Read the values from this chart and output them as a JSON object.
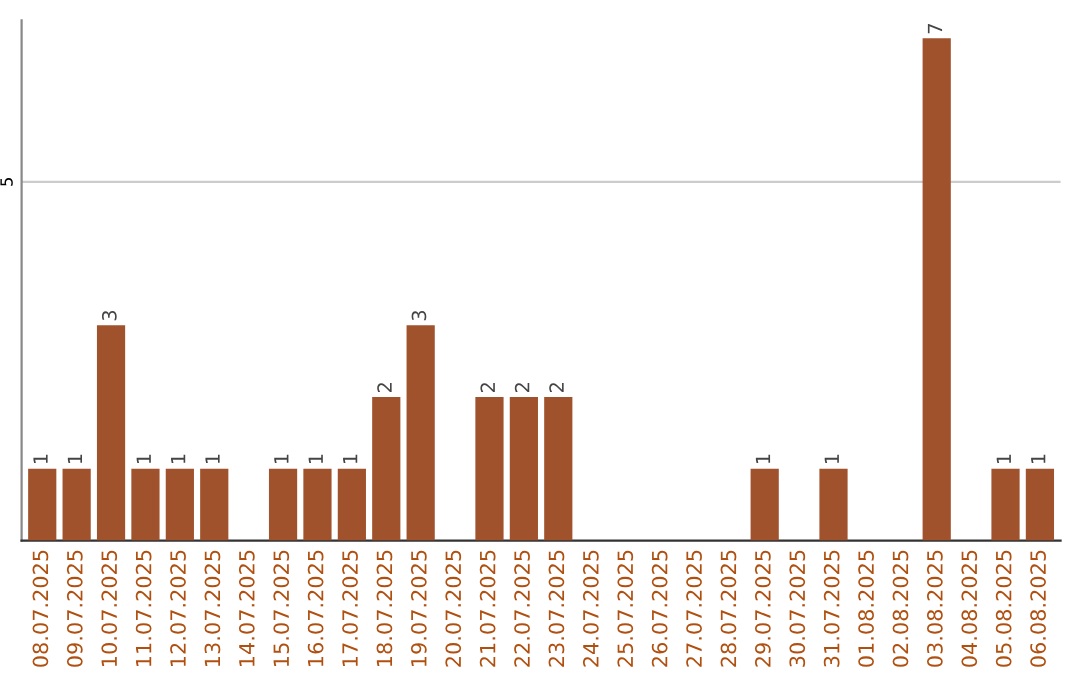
{
  "chart_data": {
    "type": "bar",
    "categories": [
      "08.07.2025",
      "09.07.2025",
      "10.07.2025",
      "11.07.2025",
      "12.07.2025",
      "13.07.2025",
      "14.07.2025",
      "15.07.2025",
      "16.07.2025",
      "17.07.2025",
      "18.07.2025",
      "19.07.2025",
      "20.07.2025",
      "21.07.2025",
      "22.07.2025",
      "23.07.2025",
      "24.07.2025",
      "25.07.2025",
      "26.07.2025",
      "27.07.2025",
      "28.07.2025",
      "29.07.2025",
      "30.07.2025",
      "31.07.2025",
      "01.08.2025",
      "02.08.2025",
      "03.08.2025",
      "04.08.2025",
      "05.08.2025",
      "06.08.2025"
    ],
    "values": [
      1,
      1,
      3,
      1,
      1,
      1,
      0,
      1,
      1,
      1,
      2,
      3,
      0,
      2,
      2,
      2,
      0,
      0,
      0,
      0,
      0,
      1,
      0,
      1,
      0,
      0,
      7,
      0,
      1,
      1
    ],
    "value_labels": [
      "1",
      "1",
      "3",
      "1",
      "1",
      "1",
      null,
      "1",
      "1",
      "1",
      "2",
      "3",
      null,
      "2",
      "2",
      "2",
      null,
      null,
      null,
      null,
      null,
      "1",
      null,
      "1",
      null,
      null,
      "7",
      null,
      "1",
      "1"
    ],
    "color": "#a0522d",
    "ylim": [
      0,
      7.25
    ],
    "yticks": [
      5
    ],
    "grid": "y",
    "legend": false
  }
}
